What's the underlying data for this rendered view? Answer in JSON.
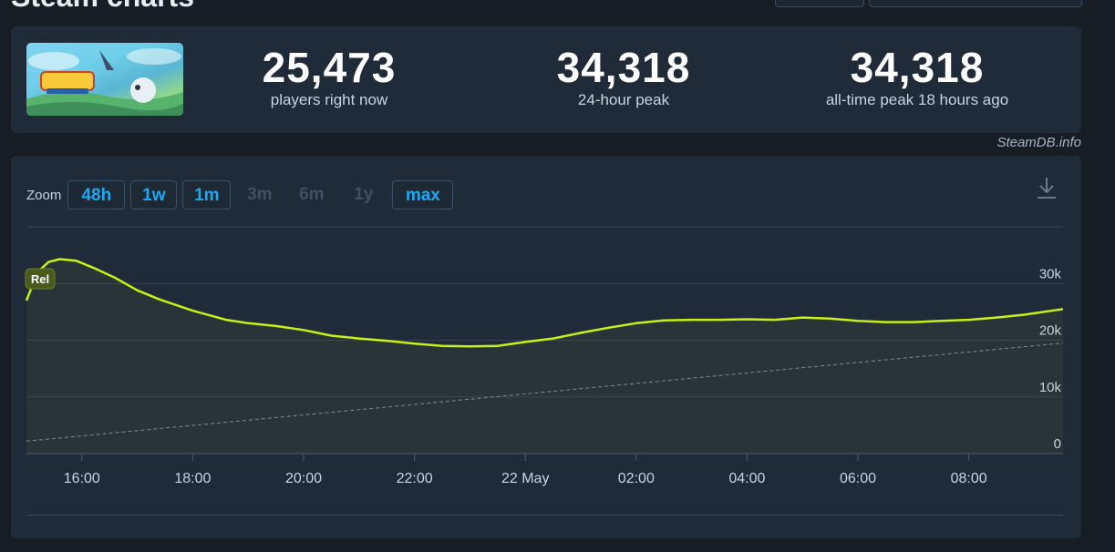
{
  "header": {
    "title": "Steam charts"
  },
  "stats": [
    {
      "value": "25,473",
      "label": "players right now"
    },
    {
      "value": "34,318",
      "label": "24-hour peak"
    },
    {
      "value": "34,318",
      "label": "all-time peak 18 hours ago"
    }
  ],
  "watermark": "SteamDB.info",
  "zoom": {
    "label": "Zoom",
    "options": [
      {
        "label": "48h",
        "state": "active"
      },
      {
        "label": "1w",
        "state": "active"
      },
      {
        "label": "1m",
        "state": "active"
      },
      {
        "label": "3m",
        "state": "disabled"
      },
      {
        "label": "6m",
        "state": "disabled"
      },
      {
        "label": "1y",
        "state": "disabled"
      },
      {
        "label": "max",
        "state": "active"
      }
    ]
  },
  "icons": {
    "download": "download-icon",
    "thumbnail": "game-thumbnail"
  },
  "colors": {
    "line": "#c7f018",
    "accent": "#1ea8f0",
    "grid": "#3a4757",
    "background": "#171d25"
  },
  "chart_data": {
    "type": "line",
    "badge": "Rel",
    "y_ticks": [
      "0",
      "10k",
      "20k",
      "30k"
    ],
    "ylim": [
      0,
      40000
    ],
    "x_ticks": [
      {
        "label": "16:00",
        "t": 1
      },
      {
        "label": "18:00",
        "t": 3
      },
      {
        "label": "20:00",
        "t": 5
      },
      {
        "label": "22:00",
        "t": 7
      },
      {
        "label": "22 May",
        "t": 9
      },
      {
        "label": "02:00",
        "t": 11
      },
      {
        "label": "04:00",
        "t": 13
      },
      {
        "label": "06:00",
        "t": 15
      },
      {
        "label": "08:00",
        "t": 17
      }
    ],
    "xlim": [
      0,
      18.7
    ],
    "series": [
      {
        "style": "solid",
        "x": [
          0,
          0.2,
          0.4,
          0.6,
          0.9,
          1.2,
          1.6,
          2,
          2.4,
          3,
          3.6,
          4,
          4.5,
          5,
          5.5,
          6,
          6.5,
          7,
          7.5,
          8,
          8.5,
          9,
          9.5,
          10,
          10.5,
          11,
          11.5,
          12,
          12.5,
          13,
          13.5,
          14,
          14.5,
          15,
          15.5,
          16,
          16.5,
          17,
          17.5,
          18,
          18.7
        ],
        "y": [
          27000,
          32000,
          33800,
          34300,
          34000,
          32800,
          31000,
          28800,
          27200,
          25200,
          23600,
          23000,
          22500,
          21800,
          20800,
          20300,
          19900,
          19400,
          19000,
          18900,
          19000,
          19700,
          20300,
          21300,
          22200,
          23000,
          23500,
          23600,
          23600,
          23700,
          23600,
          24000,
          23800,
          23400,
          23200,
          23200,
          23400,
          23600,
          24000,
          24500,
          25500
        ]
      },
      {
        "style": "dashed",
        "x": [
          0,
          18.7
        ],
        "y": [
          2200,
          19500
        ]
      }
    ]
  }
}
